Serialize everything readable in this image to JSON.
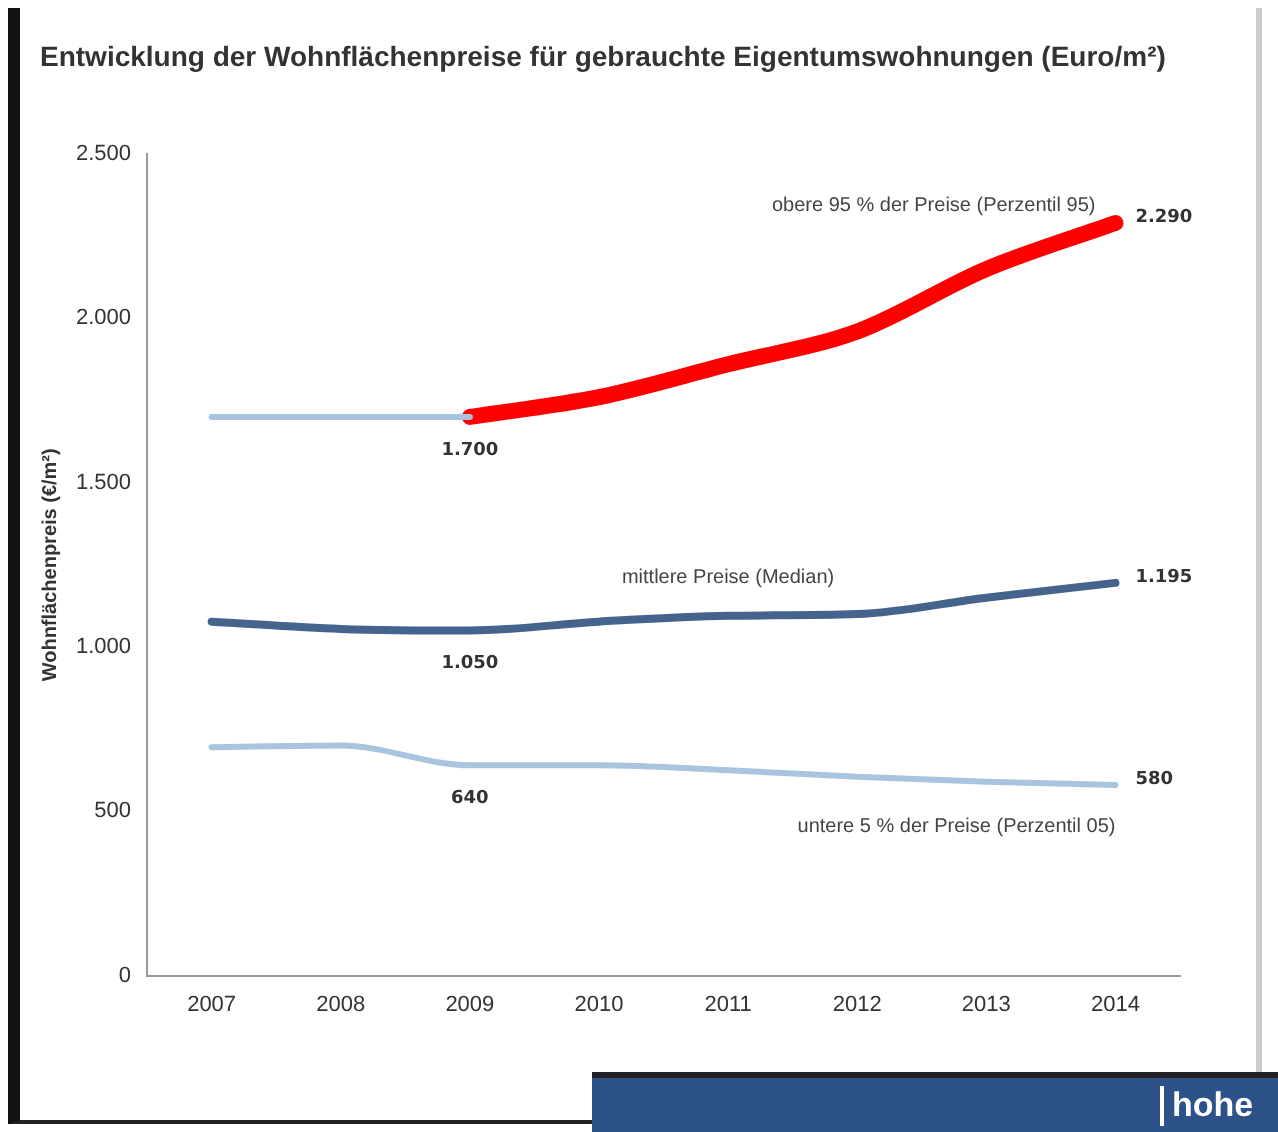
{
  "chart_data": {
    "type": "line",
    "title": "Entwicklung der Wohnflächenpreise für gebrauchte Eigentumswohnungen (Euro/m²)",
    "ylabel": "Wohnflächenpreis (€/m²)",
    "categories": [
      "2007",
      "2008",
      "2009",
      "2010",
      "2011",
      "2012",
      "2013",
      "2014"
    ],
    "series": [
      {
        "color": "#a9c4de",
        "values": [
          1700,
          1700,
          1700,
          null,
          null,
          null,
          null,
          null
        ],
        "value_labels": [
          null,
          null,
          "1.700",
          null,
          null,
          null,
          null,
          null
        ]
      },
      {
        "name": "obere 95 % der Preise (Perzentil 95)",
        "color": "#ff0000",
        "values": [
          null,
          null,
          1700,
          1760,
          1860,
          1960,
          2150,
          2290
        ],
        "value_labels": [
          null,
          null,
          null,
          null,
          null,
          null,
          null,
          "2.290"
        ]
      },
      {
        "name": "mittlere Preise (Median)",
        "color": "#44648e",
        "values": [
          1077,
          1055,
          1050,
          1077,
          1095,
          1100,
          1150,
          1195
        ],
        "value_labels": [
          null,
          null,
          "1.050",
          null,
          null,
          null,
          null,
          "1.195"
        ]
      },
      {
        "name": "untere 5 % der Preise (Perzentil 05)",
        "color": "#a9c4de",
        "values": [
          695,
          700,
          640,
          640,
          625,
          605,
          590,
          580
        ],
        "value_labels": [
          null,
          null,
          "640",
          null,
          null,
          null,
          null,
          "580"
        ]
      }
    ],
    "ylim": [
      0,
      2500
    ],
    "yticks": [
      0,
      {
        "value": 500,
        "label": "500"
      },
      {
        "value": 1000,
        "label": "1.000"
      },
      {
        "value": 1500,
        "label": "1.500"
      },
      {
        "value": 2000,
        "label": "2.000"
      },
      {
        "value": 2500,
        "label": "2.500"
      }
    ],
    "grid": false,
    "legend": false,
    "marker": "none",
    "line_style": "solid",
    "annotations": [
      "hohe"
    ]
  }
}
